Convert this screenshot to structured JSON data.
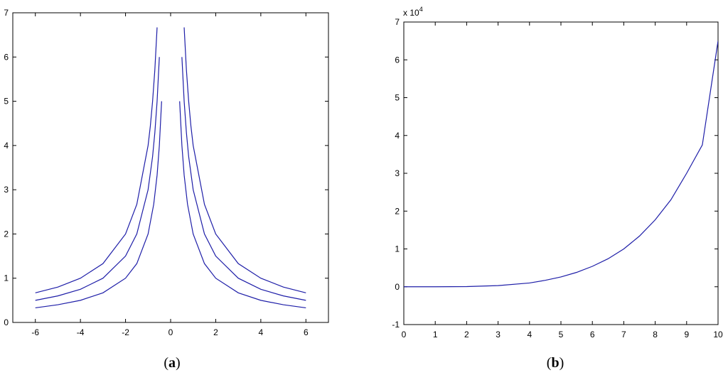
{
  "chart_data": [
    {
      "type": "line",
      "caption_letter": "a",
      "xlim": [
        -7,
        7
      ],
      "ylim": [
        0,
        7
      ],
      "xticks": [
        -6,
        -4,
        -2,
        0,
        2,
        4,
        6
      ],
      "yticks": [
        0,
        1,
        2,
        3,
        4,
        5,
        6,
        7
      ],
      "grid": false,
      "series": [
        {
          "x": [
            -6,
            -5,
            -4,
            -3,
            -2,
            -1.5,
            -1,
            -0.75,
            -0.6,
            -0.5,
            -0.4
          ],
          "y": [
            0.33,
            0.4,
            0.5,
            0.67,
            1.0,
            1.33,
            2.0,
            2.67,
            3.33,
            4.0,
            5.0
          ]
        },
        {
          "x": [
            -6,
            -5,
            -4,
            -3,
            -2,
            -1.5,
            -1,
            -0.8,
            -0.7,
            -0.6,
            -0.5
          ],
          "y": [
            0.5,
            0.6,
            0.75,
            1.0,
            1.5,
            2.0,
            3.0,
            3.75,
            4.29,
            5.0,
            6.0
          ]
        },
        {
          "x": [
            -6,
            -5,
            -4,
            -3,
            -2,
            -1.5,
            -1,
            -0.9,
            -0.8,
            -0.7,
            -0.6
          ],
          "y": [
            0.67,
            0.8,
            1.0,
            1.33,
            2.0,
            2.67,
            4.0,
            4.44,
            5.0,
            5.71,
            6.67
          ]
        },
        {
          "x": [
            0.4,
            0.5,
            0.6,
            0.75,
            1,
            1.5,
            2,
            3,
            4,
            5,
            6
          ],
          "y": [
            5.0,
            4.0,
            3.33,
            2.67,
            2.0,
            1.33,
            1.0,
            0.67,
            0.5,
            0.4,
            0.33
          ]
        },
        {
          "x": [
            0.5,
            0.6,
            0.7,
            0.8,
            1,
            1.5,
            2,
            3,
            4,
            5,
            6
          ],
          "y": [
            6.0,
            5.0,
            4.29,
            3.75,
            3.0,
            2.0,
            1.5,
            1.0,
            0.75,
            0.6,
            0.5
          ]
        },
        {
          "x": [
            0.6,
            0.7,
            0.8,
            0.9,
            1,
            1.5,
            2,
            3,
            4,
            5,
            6
          ],
          "y": [
            6.67,
            5.71,
            5.0,
            4.44,
            4.0,
            2.67,
            2.0,
            1.33,
            1.0,
            0.8,
            0.67
          ]
        }
      ]
    },
    {
      "type": "line",
      "caption_letter": "b",
      "xlim": [
        0,
        10
      ],
      "ylim": [
        -1,
        7
      ],
      "y_multiplier": "x 10",
      "y_multiplier_exp": "4",
      "xticks": [
        0,
        1,
        2,
        3,
        4,
        5,
        6,
        7,
        8,
        9,
        10
      ],
      "yticks": [
        -1,
        0,
        1,
        2,
        3,
        4,
        5,
        6,
        7
      ],
      "grid": false,
      "series": [
        {
          "x": [
            0,
            1,
            2,
            3,
            4,
            4.5,
            5,
            5.5,
            6,
            6.5,
            7,
            7.5,
            8,
            8.5,
            9,
            9.5,
            10
          ],
          "y": [
            0,
            0,
            0.005,
            0.03,
            0.1,
            0.17,
            0.26,
            0.38,
            0.54,
            0.74,
            1.0,
            1.34,
            1.77,
            2.3,
            3.0,
            3.75,
            6.5
          ]
        }
      ]
    }
  ],
  "style": {
    "line_color": "#1e1ea8",
    "axis_color": "#000000"
  }
}
